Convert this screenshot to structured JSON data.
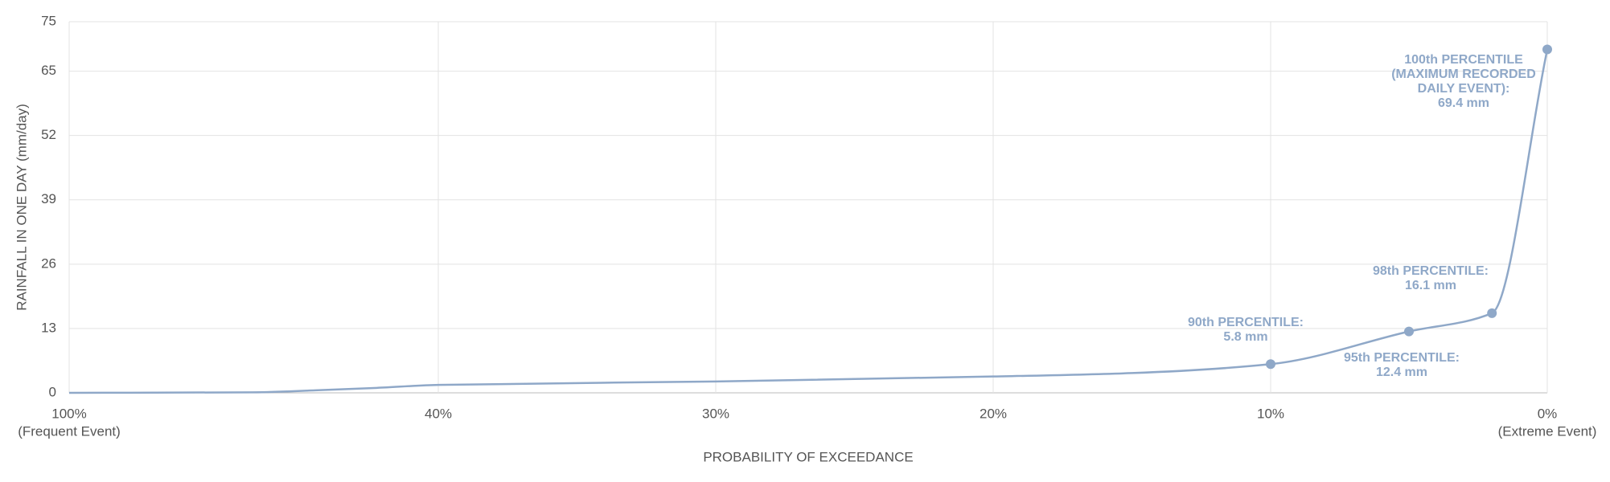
{
  "chart_data": {
    "type": "line",
    "xlabel": "PROBABILITY OF EXCEEDANCE",
    "ylabel": "RAINFALL IN ONE DAY (mm/day)",
    "xlim": [
      100,
      0
    ],
    "ylim": [
      0,
      75
    ],
    "xticks": [
      {
        "value": 100,
        "label": "100%"
      },
      {
        "value": 40,
        "label": "40%"
      },
      {
        "value": 30,
        "label": "30%"
      },
      {
        "value": 20,
        "label": "20%"
      },
      {
        "value": 10,
        "label": "10%"
      },
      {
        "value": 0,
        "label": "0%"
      }
    ],
    "xtick_notes": [
      "(Frequent Event)",
      null,
      null,
      null,
      null,
      "(Extreme Event)"
    ],
    "yticks": [
      0,
      13,
      26,
      39,
      52,
      65,
      75
    ],
    "grid": true,
    "series": [
      {
        "color": "#8fa8c8",
        "x": [
          100,
          70,
          60,
          50,
          40,
          30,
          20,
          15,
          10,
          5,
          2,
          0
        ],
        "values": [
          0,
          0.1,
          0.5,
          1,
          1.6,
          2.3,
          3.3,
          4,
          5.8,
          12.4,
          16.1,
          69.4
        ],
        "point_labels": [
          null,
          null,
          null,
          null,
          null,
          null,
          null,
          null,
          [
            "90th PERCENTILE:"
          ],
          [
            "95th PERCENTILE:"
          ],
          [
            "98th PERCENTILE:"
          ],
          [
            "100th PERCENTILE",
            "(MAXIMUM RECORDED",
            "DAILY EVENT):"
          ]
        ],
        "value_labels": [
          null,
          null,
          null,
          null,
          null,
          null,
          null,
          null,
          "5.8 mm",
          "12.4 mm",
          "16.1 mm",
          "69.4 mm"
        ]
      }
    ]
  }
}
